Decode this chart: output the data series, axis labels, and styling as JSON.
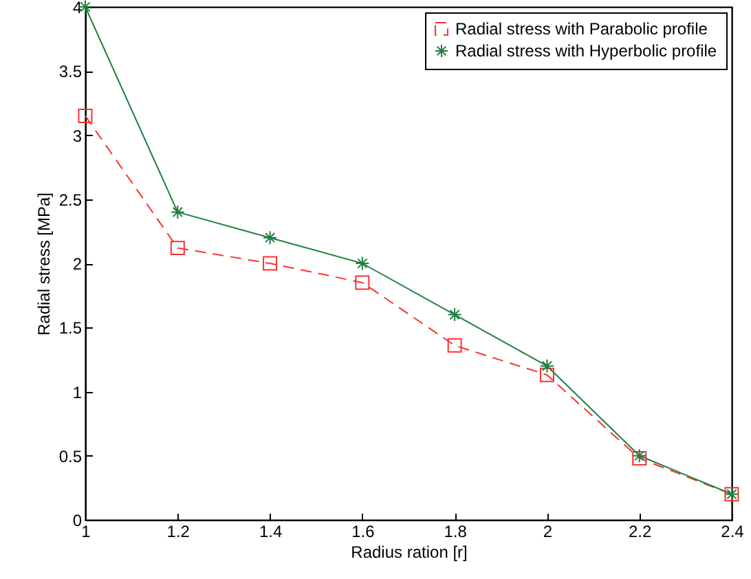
{
  "chart_data": {
    "type": "line",
    "xlabel": "Radius ration [r]",
    "ylabel": "Radial stress [MPa]",
    "x": [
      1,
      1.2,
      1.4,
      1.6,
      1.8,
      2,
      2.2,
      2.4
    ],
    "series": [
      {
        "name": "Radial stress with Parabolic profile",
        "color": "#ff3030",
        "marker": "square",
        "line_style": "dashed",
        "values": [
          3.15,
          2.12,
          2.0,
          1.85,
          1.36,
          1.13,
          0.48,
          0.2
        ]
      },
      {
        "name": "Radial stress with Hyperbolic profile",
        "color": "#1f7f3f",
        "marker": "cross",
        "line_style": "solid",
        "values": [
          4.0,
          2.4,
          2.2,
          2.0,
          1.6,
          1.2,
          0.5,
          0.2
        ]
      }
    ],
    "xlim": [
      1,
      2.4
    ],
    "xticks": [
      1,
      1.2,
      1.4,
      1.6,
      1.8,
      2,
      2.2,
      2.4
    ],
    "ylim": [
      0,
      4
    ],
    "yticks": [
      0,
      0.5,
      1,
      1.5,
      2,
      2.5,
      3,
      3.5,
      4
    ],
    "grid": false,
    "legend": "top right"
  }
}
